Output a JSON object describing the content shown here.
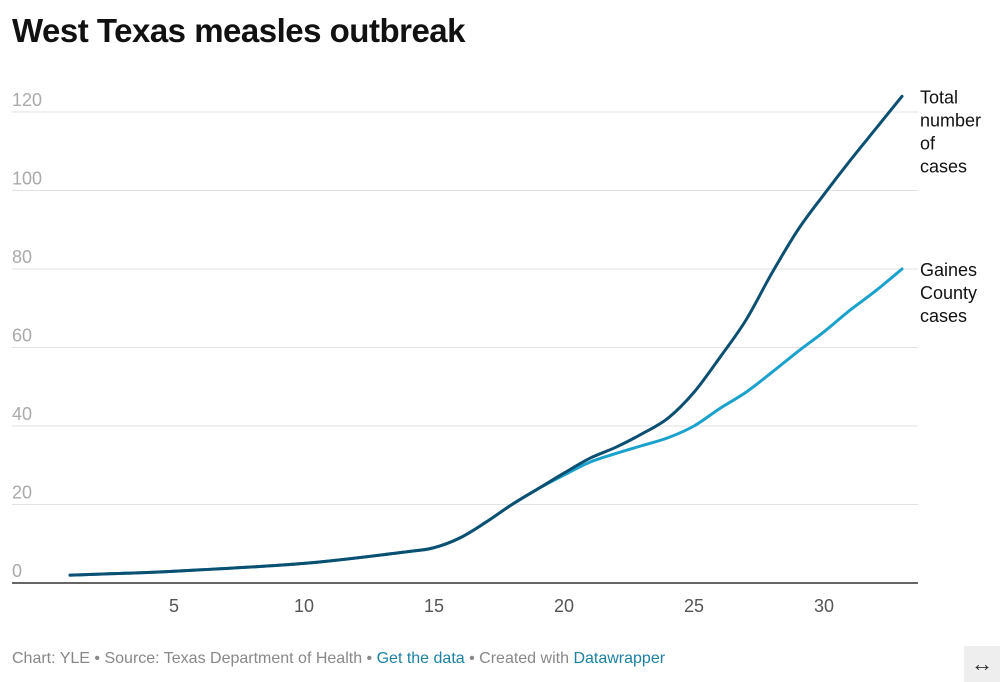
{
  "title": "West Texas measles outbreak",
  "chart_data": {
    "type": "line",
    "title": "West Texas measles outbreak",
    "xlabel": "",
    "ylabel": "",
    "xlim": [
      0,
      35
    ],
    "ylim": [
      0,
      120
    ],
    "xticks": [
      5,
      10,
      15,
      20,
      25,
      30
    ],
    "yticks": [
      0,
      20,
      40,
      60,
      80,
      100,
      120
    ],
    "grid": true,
    "x": [
      1,
      5,
      10,
      14,
      15,
      16,
      17,
      18,
      19,
      20,
      21,
      22,
      23,
      24,
      25,
      26,
      27,
      28,
      29,
      30,
      31,
      32,
      33
    ],
    "series": [
      {
        "name": "Total number of cases",
        "label_lines": [
          "Total",
          "number",
          "of",
          "cases"
        ],
        "color": "#0b4f71",
        "values": [
          2,
          3,
          5,
          8,
          9,
          11.5,
          15.5,
          20,
          24,
          28,
          31.8,
          34.6,
          38,
          42,
          48.6,
          57.5,
          67,
          79,
          90,
          99,
          107.6,
          115.8,
          124
        ]
      },
      {
        "name": "Gaines County cases",
        "label_lines": [
          "Gaines",
          "County",
          "cases"
        ],
        "color": "#1aa1cc",
        "values": [
          2,
          3,
          5,
          8,
          9,
          11.5,
          15.5,
          20,
          24,
          27.5,
          30.8,
          33,
          35,
          37,
          40,
          44.5,
          48.6,
          53.7,
          59,
          64,
          69.5,
          74.5,
          80
        ]
      }
    ]
  },
  "footer": {
    "chart_credit": "Chart: YLE",
    "source": "Source: Texas Department of Health",
    "get_data": "Get the data",
    "created_with": "Created with",
    "datawrapper": "Datawrapper",
    "sep": " • "
  },
  "expand_icon": "↔"
}
